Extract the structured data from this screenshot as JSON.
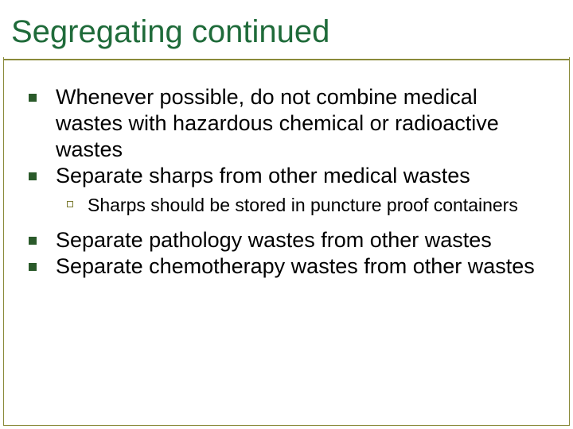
{
  "slide": {
    "title": "Segregating continued",
    "bullets_group1": [
      "Whenever possible, do not combine medical wastes with hazardous chemical or radioactive wastes",
      "Separate sharps from other medical wastes"
    ],
    "sub_bullets": [
      "Sharps should be stored in puncture proof containers"
    ],
    "bullets_group2": [
      "Separate pathology wastes from other wastes",
      "Separate chemotherapy wastes from other wastes"
    ]
  },
  "style": {
    "title_color": "#1f6b3a",
    "accent_color": "#8a8a3a",
    "bullet_color": "#2a5a2a",
    "text_color": "#000000",
    "background_color": "#ffffff",
    "title_fontsize": 40,
    "body_fontsize": 27,
    "sub_fontsize": 23
  }
}
